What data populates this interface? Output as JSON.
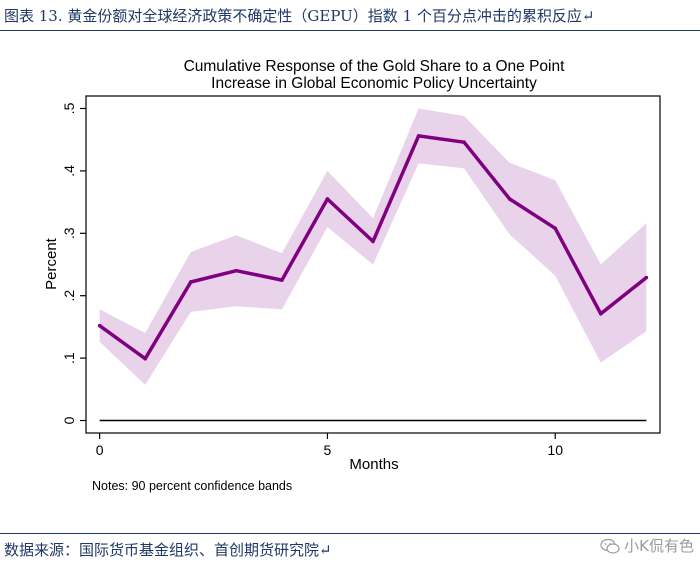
{
  "header": {
    "caption": "图表 13. 黄金份额对全球经济政策不确定性（GEPU）指数 1 个百分点冲击的累积反应↵"
  },
  "footer": {
    "source": "数据来源：国际货币基金组织、首创期货研究院↵",
    "watermark": "小K侃有色"
  },
  "colors": {
    "header_text": "#1f3864",
    "line": "#800080",
    "band": "#e8d3ea",
    "zero_line": "#000000",
    "plot_border": "#000000"
  },
  "chart_data": {
    "type": "line",
    "title": "Cumulative Response of the Gold Share to a One Point",
    "subtitle": "Increase in Global Economic Policy Uncertainty",
    "xlabel": "Months",
    "ylabel": "Percent",
    "note": "Notes: 90 percent confidence bands",
    "x": [
      0,
      1,
      2,
      3,
      4,
      5,
      6,
      7,
      8,
      9,
      10,
      11,
      12
    ],
    "y": [
      0.152,
      0.099,
      0.222,
      0.24,
      0.225,
      0.355,
      0.287,
      0.456,
      0.446,
      0.355,
      0.308,
      0.171,
      0.229
    ],
    "band_upper": [
      0.178,
      0.14,
      0.27,
      0.297,
      0.268,
      0.4,
      0.324,
      0.5,
      0.488,
      0.413,
      0.385,
      0.25,
      0.316
    ],
    "band_lower": [
      0.126,
      0.057,
      0.174,
      0.183,
      0.178,
      0.31,
      0.25,
      0.412,
      0.404,
      0.298,
      0.232,
      0.093,
      0.143
    ],
    "zero_line": 0,
    "xlim": [
      -0.3,
      12.3
    ],
    "ylim": [
      -0.02,
      0.52
    ],
    "x_ticks": [
      0,
      5,
      10
    ],
    "x_tick_labels": [
      "0",
      "5",
      "10"
    ],
    "y_ticks": [
      0,
      0.1,
      0.2,
      0.3,
      0.4,
      0.5
    ],
    "y_tick_labels": [
      "0",
      ".1",
      ".2",
      ".3",
      ".4",
      ".5"
    ],
    "grid": false,
    "legend": "none"
  }
}
